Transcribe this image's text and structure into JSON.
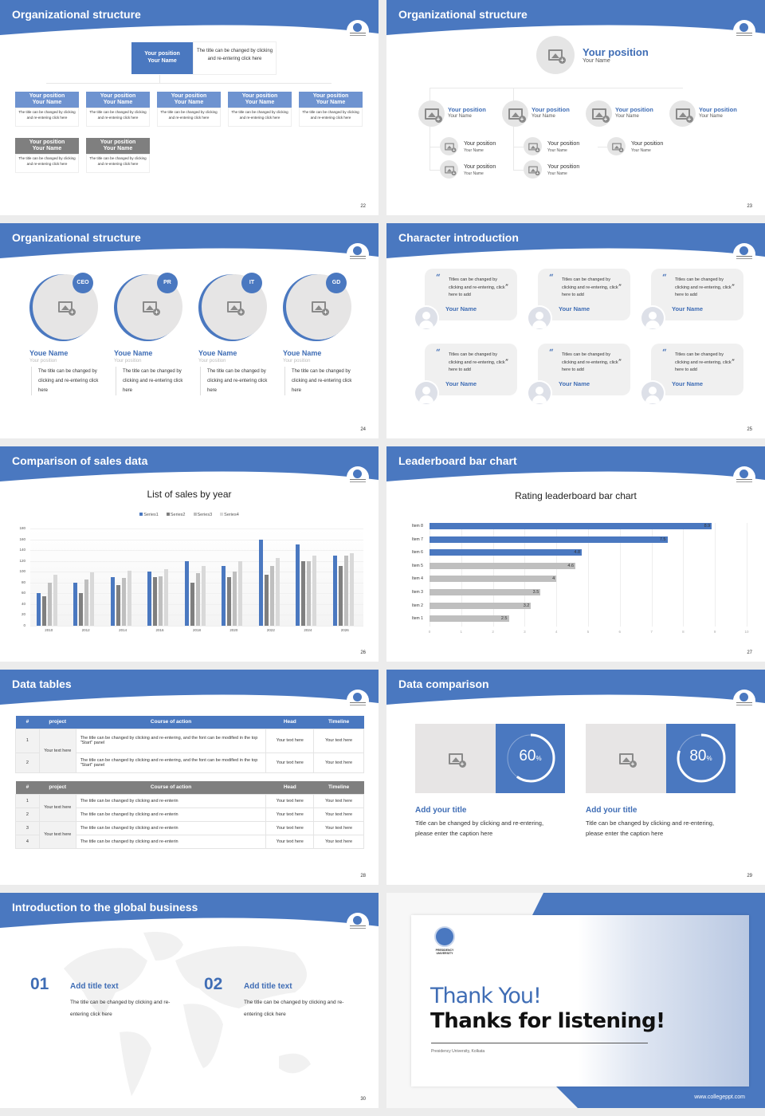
{
  "theme": {
    "accent": "#4a78c0",
    "accent_text": "#3f6db5",
    "gray_dark": "#7f7f7f",
    "gray_light": "#bfbfbf",
    "gray_lighter": "#d9d9d9",
    "placeholder_bg": "#e6e5e5"
  },
  "slides": {
    "s22": {
      "title": "Organizational structure",
      "page": "22",
      "top": {
        "position": "Your position",
        "name": "Your Name",
        "desc": "The title can be changed by clicking and re-entering click here"
      },
      "row1": [
        {
          "position": "Your position",
          "name": "Your Name",
          "desc": "The title can be changed by clicking and re-entering click here"
        },
        {
          "position": "Your position",
          "name": "Your Name",
          "desc": "The title can be changed by clicking and re-entering click here"
        },
        {
          "position": "Your position",
          "name": "Your Name",
          "desc": "The title can be changed by clicking and re-entering click here"
        },
        {
          "position": "Your position",
          "name": "Your Name",
          "desc": "The title can be changed by clicking and re-entering click here"
        },
        {
          "position": "Your position",
          "name": "Your Name",
          "desc": "The title can be changed by clicking and re-entering click here"
        }
      ],
      "row2": [
        {
          "position": "Your position",
          "name": "Your Name",
          "desc": "The title can be changed by clicking and re-entering click here"
        },
        {
          "position": "Your position",
          "name": "Your Name",
          "desc": "The title can be changed by clicking and re-entering click here"
        }
      ]
    },
    "s23": {
      "title": "Organizational structure",
      "page": "23",
      "top": {
        "position": "Your position",
        "name": "Your Name"
      },
      "level1": [
        {
          "position": "Your position",
          "name": "Your Name"
        },
        {
          "position": "Your position",
          "name": "Your Name"
        },
        {
          "position": "Your position",
          "name": "Your Name"
        },
        {
          "position": "Your position",
          "name": "Your Name"
        }
      ],
      "level2": [
        {
          "position": "Your position",
          "name": "Your Name"
        },
        {
          "position": "Your position",
          "name": "Your Name"
        },
        {
          "position": "Your position",
          "name": "Your Name"
        },
        {
          "position": "Your position",
          "name": "Your Name"
        },
        {
          "position": "Your position",
          "name": "Your Name"
        }
      ]
    },
    "s24": {
      "title": "Organizational structure",
      "page": "24",
      "cards": [
        {
          "badge": "CEO",
          "name": "Youe Name",
          "position": "Your position",
          "desc": "The title can be changed by clicking and re-entering click here"
        },
        {
          "badge": "PR",
          "name": "Youe Name",
          "position": "Your position",
          "desc": "The title can be changed by clicking and re-entering click here"
        },
        {
          "badge": "IT",
          "name": "Youe Name",
          "position": "Your position",
          "desc": "The title can be changed by clicking and re-entering click here"
        },
        {
          "badge": "GD",
          "name": "Youe Name",
          "position": "Your position",
          "desc": "The title can be changed by clicking and re-entering click here"
        }
      ]
    },
    "s25": {
      "title": "Character introduction",
      "page": "25",
      "quote_open": "“",
      "quote_close": "”",
      "cards": [
        {
          "text": "Titles can be changed by clicking and re-entering, click here to add",
          "name": "Your Name"
        },
        {
          "text": "Titles can be changed by clicking and re-entering, click here to add",
          "name": "Your Name"
        },
        {
          "text": "Titles can be changed by clicking and re-entering, click here to add",
          "name": "Your Name"
        },
        {
          "text": "Titles can be changed by clicking and re-entering, click here to add",
          "name": "Your Name"
        },
        {
          "text": "Titles can be changed by clicking and re-entering, click here to add",
          "name": "Your Name"
        },
        {
          "text": "Titles can be changed by clicking and re-entering, click here to add",
          "name": "Your Name"
        }
      ]
    },
    "s26": {
      "title": "Comparison of sales data",
      "page": "26",
      "chart_title": "List of sales by year",
      "legend": [
        "Series1",
        "Series2",
        "Series3",
        "Series4"
      ],
      "y_ticks": [
        "180",
        "160",
        "140",
        "120",
        "100",
        "80",
        "60",
        "40",
        "20",
        "0"
      ],
      "x_ticks": [
        "2010",
        "2012",
        "2014",
        "2016",
        "2018",
        "2020",
        "2022",
        "2024",
        "2026"
      ]
    },
    "s27": {
      "title": "Leaderboard bar chart",
      "page": "27",
      "chart_title": "Rating leaderboard bar chart",
      "x_ticks": [
        "0",
        "1",
        "2",
        "3",
        "4",
        "5",
        "6",
        "7",
        "8",
        "9",
        "10"
      ]
    },
    "s28": {
      "title": "Data tables",
      "page": "28",
      "headers": [
        "#",
        "project",
        "Course of action",
        "Head",
        "Timeline"
      ],
      "table1": {
        "project": "Your text here",
        "rows": [
          {
            "num": "1",
            "action": "The title can be changed by clicking and re-entering, and the font can be modified in the top \"Start\" panel",
            "head": "Your text here",
            "timeline": "Your text here"
          },
          {
            "num": "2",
            "action": "The title can be changed by clicking and re-entering, and the font can be modified in the top \"Start\" panel",
            "head": "Your text here",
            "timeline": "Your text here"
          }
        ]
      },
      "table2": {
        "projects": [
          "Your text here",
          "Your text here"
        ],
        "rows": [
          {
            "num": "1",
            "action": "The title can be changed by clicking and re-enterin",
            "head": "Your text here",
            "timeline": "Your text here"
          },
          {
            "num": "2",
            "action": "The title can be changed by clicking and re-enterin",
            "head": "Your text here",
            "timeline": "Your text here"
          },
          {
            "num": "3",
            "action": "The title can be changed by clicking and re-enterin",
            "head": "Your text here",
            "timeline": "Your text here"
          },
          {
            "num": "4",
            "action": "The title can be changed by clicking and re-enterin",
            "head": "Your text here",
            "timeline": "Your text here"
          }
        ]
      }
    },
    "s29": {
      "title": "Data comparison",
      "page": "29",
      "items": [
        {
          "value": "60",
          "unit": "%",
          "heading": "Add your title",
          "caption": "Title can be changed by clicking and re-entering, please enter the caption here"
        },
        {
          "value": "80",
          "unit": "%",
          "heading": "Add your title",
          "caption": "Title can be changed by clicking and re-entering, please enter the caption here"
        }
      ]
    },
    "s30": {
      "title": "Introduction to the global business",
      "page": "30",
      "items": [
        {
          "num": "01",
          "heading": "Add title text",
          "text": "The title can be changed by clicking and re-entering click here"
        },
        {
          "num": "02",
          "heading": "Add title text",
          "text": "The title can be changed by clicking and re-entering click here"
        }
      ]
    },
    "s31": {
      "thank_you": "Thank You!",
      "thanks": "Thanks for listening!",
      "subtitle": "Presidency University, Kolkata",
      "logo_text": "PRESIDENCY UNIVERSITY",
      "url": "www.collegeppt.com"
    }
  },
  "chart_data": [
    {
      "type": "bar",
      "title": "List of sales by year",
      "categories": [
        "2010",
        "2012",
        "2014",
        "2016",
        "2018",
        "2020",
        "2022",
        "2024",
        "2026"
      ],
      "series": [
        {
          "name": "Series1",
          "color": "#4a78c0",
          "values": [
            60,
            80,
            90,
            100,
            120,
            110,
            160,
            150,
            130
          ]
        },
        {
          "name": "Series2",
          "color": "#7f7f7f",
          "values": [
            55,
            60,
            75,
            90,
            80,
            90,
            95,
            120,
            110
          ]
        },
        {
          "name": "Series3",
          "color": "#bfbfbf",
          "values": [
            80,
            86,
            88,
            92,
            98,
            100,
            110,
            120,
            130
          ]
        },
        {
          "name": "Series4",
          "color": "#d9d9d9",
          "values": [
            95,
            99,
            102,
            105,
            110,
            120,
            126,
            130,
            135
          ]
        }
      ],
      "xlabel": "",
      "ylabel": "",
      "ylim": [
        0,
        180
      ],
      "grid": true,
      "legend_position": "top"
    },
    {
      "type": "bar",
      "orientation": "horizontal",
      "title": "Rating leaderboard bar chart",
      "categories": [
        "Item 8",
        "Item 7",
        "Item 6",
        "Item 5",
        "Item 4",
        "Item 3",
        "Item 2",
        "Item 1"
      ],
      "values": [
        8.9,
        7.5,
        4.8,
        4.6,
        4,
        3.5,
        3.2,
        2.5
      ],
      "highlight": [
        true,
        true,
        true,
        false,
        false,
        false,
        false,
        false
      ],
      "xlim": [
        0,
        10
      ],
      "grid": true
    }
  ]
}
